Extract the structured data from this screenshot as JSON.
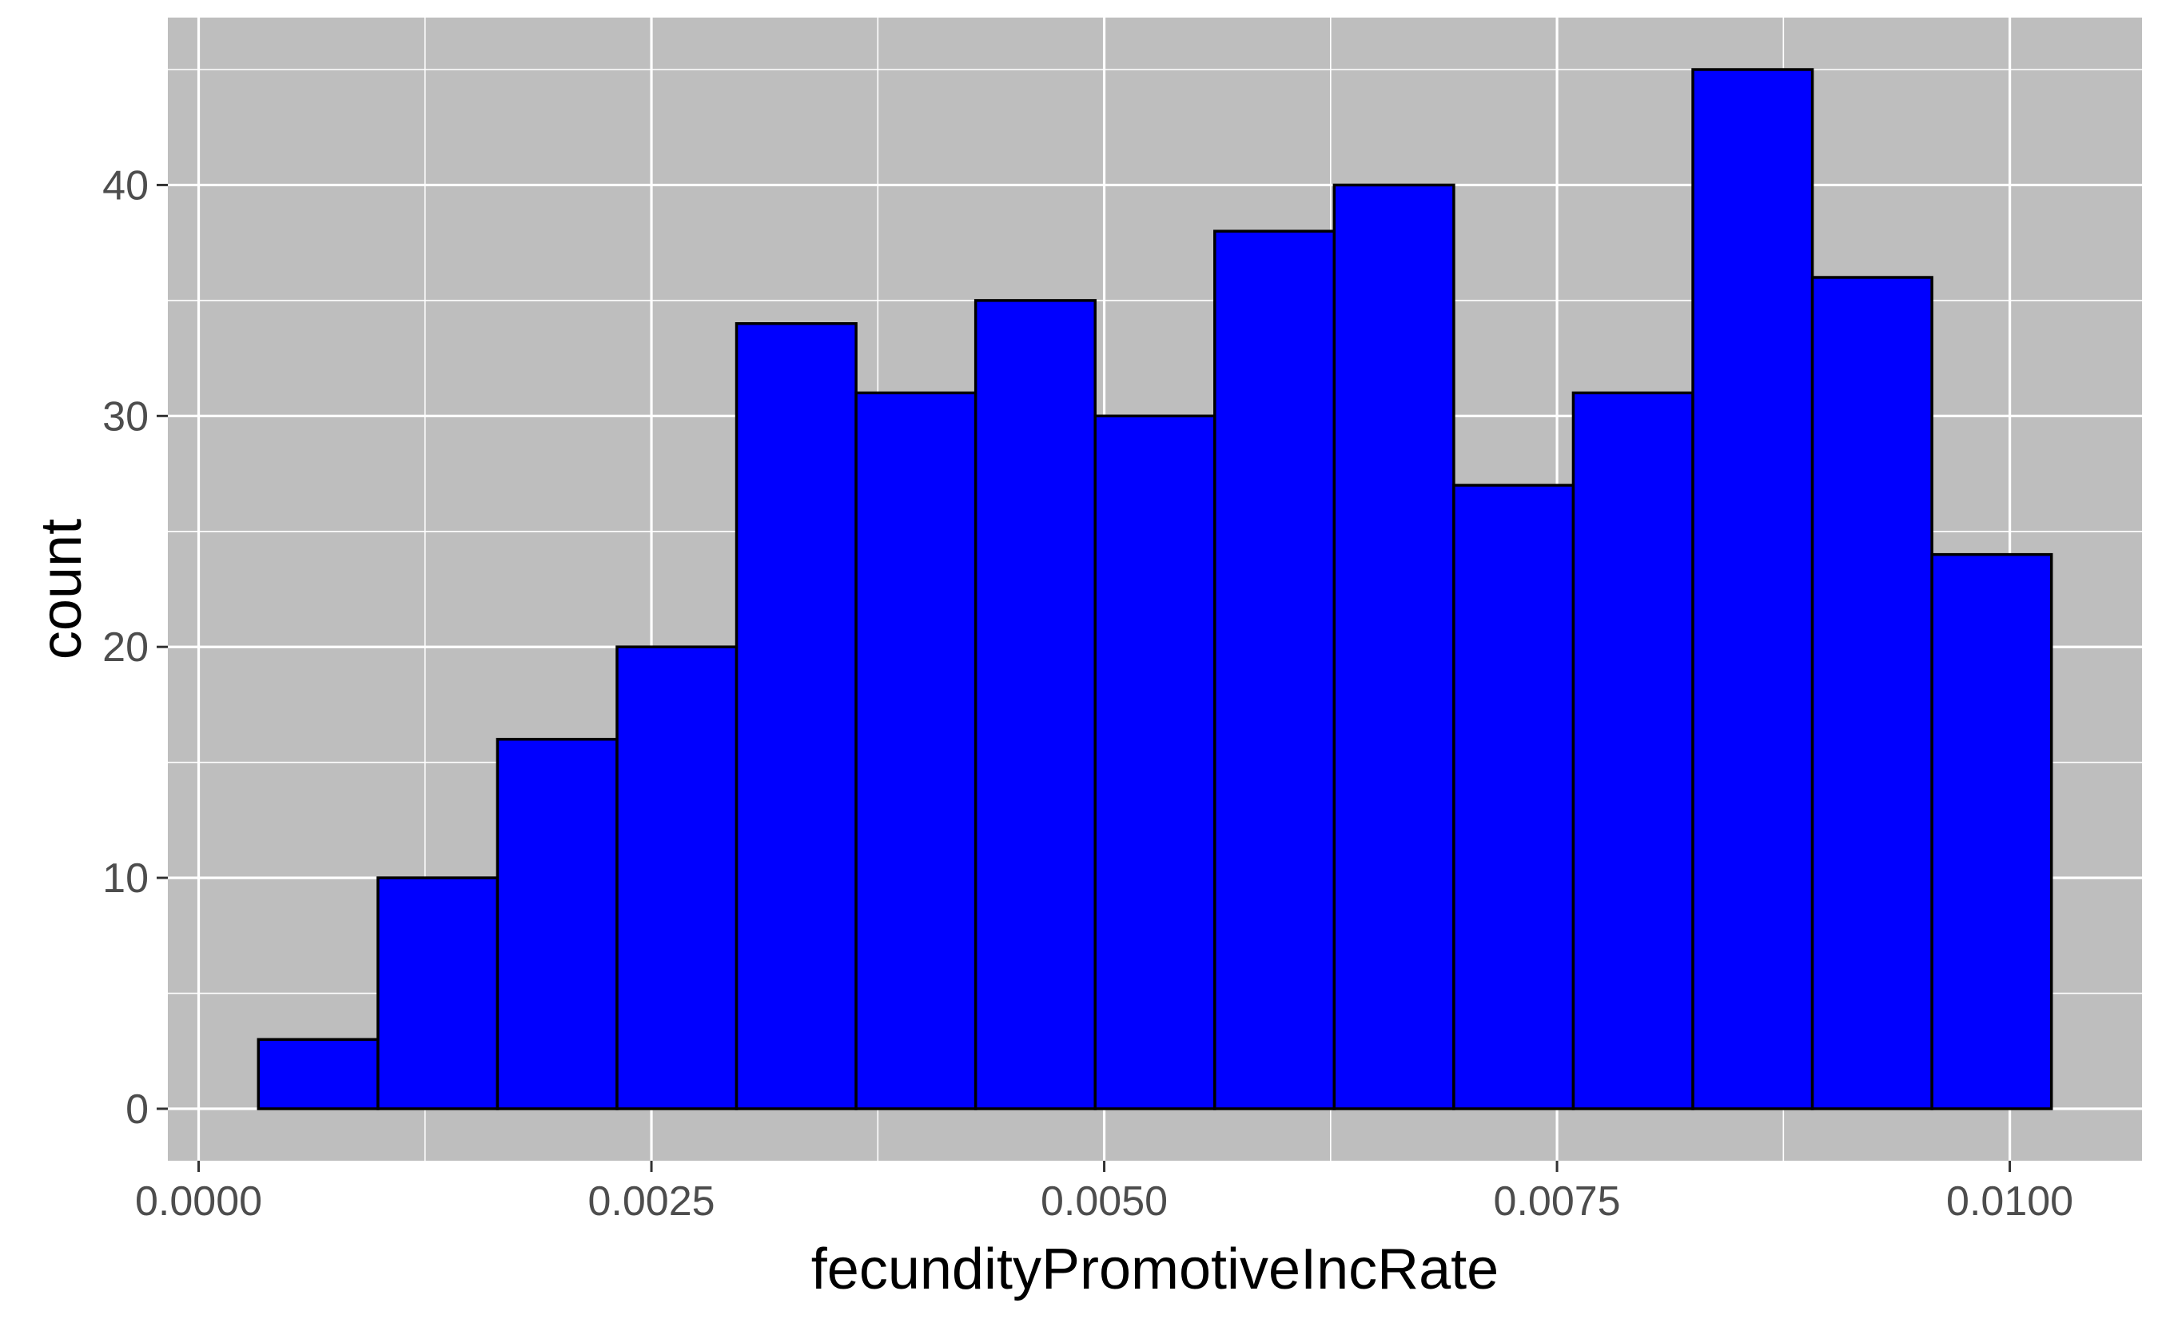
{
  "chart_data": {
    "type": "histogram",
    "title": "",
    "xlabel": "fecundityPromotiveIncRate",
    "ylabel": "count",
    "bin_width": 0.00066,
    "bins": [
      {
        "x0": 0.00033,
        "x1": 0.00099,
        "count": 3
      },
      {
        "x0": 0.00099,
        "x1": 0.00165,
        "count": 10
      },
      {
        "x0": 0.00165,
        "x1": 0.00231,
        "count": 16
      },
      {
        "x0": 0.00231,
        "x1": 0.00297,
        "count": 20
      },
      {
        "x0": 0.00297,
        "x1": 0.00363,
        "count": 34
      },
      {
        "x0": 0.00363,
        "x1": 0.00429,
        "count": 31
      },
      {
        "x0": 0.00429,
        "x1": 0.00495,
        "count": 35
      },
      {
        "x0": 0.00495,
        "x1": 0.00561,
        "count": 30
      },
      {
        "x0": 0.00561,
        "x1": 0.00627,
        "count": 38
      },
      {
        "x0": 0.00627,
        "x1": 0.00693,
        "count": 40
      },
      {
        "x0": 0.00693,
        "x1": 0.00759,
        "count": 27
      },
      {
        "x0": 0.00759,
        "x1": 0.00825,
        "count": 31
      },
      {
        "x0": 0.00825,
        "x1": 0.00891,
        "count": 45
      },
      {
        "x0": 0.00891,
        "x1": 0.00957,
        "count": 36
      },
      {
        "x0": 0.00957,
        "x1": 0.01023,
        "count": 24
      }
    ],
    "xlim": [
      -0.00017,
      0.01073
    ],
    "ylim": [
      -2.25,
      47.25
    ],
    "x_ticks": [
      {
        "value": 0.0,
        "label": "0.0000"
      },
      {
        "value": 0.0025,
        "label": "0.0025"
      },
      {
        "value": 0.005,
        "label": "0.0050"
      },
      {
        "value": 0.0075,
        "label": "0.0075"
      },
      {
        "value": 0.01,
        "label": "0.0100"
      }
    ],
    "y_ticks": [
      {
        "value": 0,
        "label": "0"
      },
      {
        "value": 10,
        "label": "10"
      },
      {
        "value": 20,
        "label": "20"
      },
      {
        "value": 30,
        "label": "30"
      },
      {
        "value": 40,
        "label": "40"
      }
    ],
    "x_minor_ticks": [
      0.00125,
      0.00375,
      0.00625,
      0.00875
    ],
    "y_minor_ticks": [
      5,
      15,
      25,
      35,
      45
    ],
    "grid": true,
    "legend": "none",
    "colors": {
      "panel": "#bebebe",
      "grid": "#ffffff",
      "bar_fill": "#0000ff",
      "bar_stroke": "#000000",
      "tick_mark": "#333333"
    }
  }
}
